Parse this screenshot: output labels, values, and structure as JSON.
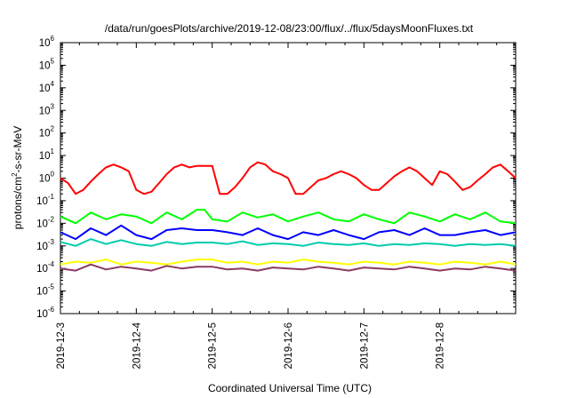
{
  "chart_data": {
    "type": "line",
    "title": "/data/run/goesPlots/archive/2019-12-08/23:00/flux/../flux/5daysMoonFluxes.txt",
    "xlabel": "Coordinated Universal Time (UTC)",
    "ylabel": {
      "base": "protons/cm",
      "sup": "2",
      "rest": "-s-sr-MeV"
    },
    "yscale": "log",
    "ylim": [
      1e-06,
      1000000.0
    ],
    "xlim": [
      3.0,
      9.0
    ],
    "x_unit_note": "x values are day-of-month in December 2019 (fractional)",
    "y_ticks": [
      {
        "value": 1e-06,
        "base": "10",
        "exp": "-6"
      },
      {
        "value": 1e-05,
        "base": "10",
        "exp": "-5"
      },
      {
        "value": 0.0001,
        "base": "10",
        "exp": "-4"
      },
      {
        "value": 0.001,
        "base": "10",
        "exp": "-3"
      },
      {
        "value": 0.01,
        "base": "10",
        "exp": "-2"
      },
      {
        "value": 0.1,
        "base": "10",
        "exp": "-1"
      },
      {
        "value": 1.0,
        "base": "10",
        "exp": "0"
      },
      {
        "value": 10.0,
        "base": "10",
        "exp": "1"
      },
      {
        "value": 100.0,
        "base": "10",
        "exp": "2"
      },
      {
        "value": 1000.0,
        "base": "10",
        "exp": "3"
      },
      {
        "value": 10000.0,
        "base": "10",
        "exp": "4"
      },
      {
        "value": 100000.0,
        "base": "10",
        "exp": "5"
      },
      {
        "value": 1000000.0,
        "base": "10",
        "exp": "6"
      }
    ],
    "x_ticks": [
      {
        "value": 3,
        "label": "2019-12-3"
      },
      {
        "value": 4,
        "label": "2019-12-4"
      },
      {
        "value": 5,
        "label": "2019-12-5"
      },
      {
        "value": 6,
        "label": "2019-12-6"
      },
      {
        "value": 7,
        "label": "2019-12-7"
      },
      {
        "value": 8,
        "label": "2019-12-8"
      }
    ],
    "grid": false,
    "legend": "none",
    "series": [
      {
        "color": "#ff0000",
        "x": [
          3.0,
          3.1,
          3.2,
          3.3,
          3.4,
          3.5,
          3.6,
          3.7,
          3.8,
          3.9,
          4.0,
          4.1,
          4.2,
          4.3,
          4.4,
          4.5,
          4.6,
          4.7,
          4.8,
          4.9,
          5.0,
          5.1,
          5.2,
          5.3,
          5.4,
          5.5,
          5.6,
          5.7,
          5.8,
          5.9,
          6.0,
          6.1,
          6.2,
          6.3,
          6.4,
          6.5,
          6.6,
          6.7,
          6.8,
          6.9,
          7.0,
          7.1,
          7.2,
          7.3,
          7.4,
          7.5,
          7.6,
          7.7,
          7.8,
          7.9,
          8.0,
          8.1,
          8.2,
          8.3,
          8.4,
          8.5,
          8.6,
          8.7,
          8.8,
          8.9,
          9.0
        ],
        "y": [
          1.0,
          0.6,
          0.2,
          0.3,
          0.7,
          1.5,
          3.0,
          4.0,
          3.0,
          2.0,
          0.3,
          0.2,
          0.25,
          0.6,
          1.5,
          3.0,
          4.0,
          3.0,
          3.5,
          3.5,
          3.5,
          0.2,
          0.2,
          0.4,
          1.0,
          3.0,
          5.0,
          4.0,
          2.0,
          1.5,
          1.0,
          0.2,
          0.2,
          0.4,
          0.8,
          1.0,
          1.5,
          2.0,
          1.5,
          1.0,
          0.5,
          0.3,
          0.3,
          0.6,
          1.2,
          2.0,
          3.0,
          2.0,
          1.0,
          0.5,
          2.0,
          1.5,
          0.7,
          0.3,
          0.4,
          0.8,
          1.5,
          3.0,
          4.0,
          2.0,
          1.0
        ]
      },
      {
        "color": "#00ff00",
        "x": [
          3.0,
          3.2,
          3.4,
          3.6,
          3.8,
          4.0,
          4.2,
          4.4,
          4.6,
          4.8,
          4.9,
          5.0,
          5.2,
          5.4,
          5.6,
          5.8,
          6.0,
          6.2,
          6.4,
          6.6,
          6.8,
          7.0,
          7.2,
          7.4,
          7.6,
          7.8,
          8.0,
          8.2,
          8.4,
          8.6,
          8.8,
          9.0
        ],
        "y": [
          0.02,
          0.01,
          0.03,
          0.015,
          0.025,
          0.02,
          0.01,
          0.03,
          0.015,
          0.04,
          0.04,
          0.015,
          0.012,
          0.03,
          0.018,
          0.025,
          0.012,
          0.02,
          0.03,
          0.015,
          0.012,
          0.025,
          0.015,
          0.01,
          0.03,
          0.02,
          0.012,
          0.025,
          0.015,
          0.03,
          0.012,
          0.01
        ]
      },
      {
        "color": "#0000ff",
        "x": [
          3.0,
          3.2,
          3.4,
          3.6,
          3.8,
          4.0,
          4.2,
          4.4,
          4.6,
          4.8,
          5.0,
          5.2,
          5.4,
          5.6,
          5.8,
          6.0,
          6.2,
          6.4,
          6.6,
          6.8,
          7.0,
          7.2,
          7.4,
          7.6,
          7.8,
          8.0,
          8.2,
          8.4,
          8.6,
          8.8,
          9.0
        ],
        "y": [
          0.004,
          0.002,
          0.006,
          0.003,
          0.008,
          0.003,
          0.002,
          0.005,
          0.006,
          0.005,
          0.005,
          0.004,
          0.003,
          0.006,
          0.003,
          0.002,
          0.004,
          0.003,
          0.005,
          0.003,
          0.002,
          0.004,
          0.005,
          0.003,
          0.006,
          0.003,
          0.003,
          0.004,
          0.005,
          0.003,
          0.004
        ]
      },
      {
        "color": "#00ccaa",
        "x": [
          3.0,
          3.2,
          3.4,
          3.6,
          3.8,
          4.0,
          4.2,
          4.4,
          4.6,
          4.8,
          5.0,
          5.2,
          5.4,
          5.6,
          5.8,
          6.0,
          6.2,
          6.4,
          6.6,
          6.8,
          7.0,
          7.2,
          7.4,
          7.6,
          7.8,
          8.0,
          8.2,
          8.4,
          8.6,
          8.8,
          9.0
        ],
        "y": [
          0.0015,
          0.001,
          0.002,
          0.0012,
          0.0018,
          0.0012,
          0.001,
          0.0015,
          0.0012,
          0.0014,
          0.0014,
          0.0012,
          0.0016,
          0.0011,
          0.0013,
          0.0012,
          0.001,
          0.0014,
          0.0012,
          0.0011,
          0.0013,
          0.001,
          0.0012,
          0.0011,
          0.0013,
          0.0012,
          0.001,
          0.0012,
          0.0011,
          0.0012,
          0.001
        ]
      },
      {
        "color": "#ffff00",
        "x": [
          3.0,
          3.2,
          3.4,
          3.6,
          3.8,
          4.0,
          4.2,
          4.4,
          4.6,
          4.8,
          5.0,
          5.2,
          5.4,
          5.6,
          5.8,
          6.0,
          6.2,
          6.4,
          6.6,
          6.8,
          7.0,
          7.2,
          7.4,
          7.6,
          7.8,
          8.0,
          8.2,
          8.4,
          8.6,
          8.8,
          9.0
        ],
        "y": [
          0.00015,
          0.0002,
          0.00018,
          0.00025,
          0.00015,
          0.0002,
          0.00018,
          0.00015,
          0.0002,
          0.00025,
          0.00025,
          0.00018,
          0.0002,
          0.00015,
          0.0002,
          0.00018,
          0.00025,
          0.0002,
          0.00018,
          0.00015,
          0.0002,
          0.00018,
          0.00015,
          0.0002,
          0.00018,
          0.00015,
          0.0002,
          0.00018,
          0.00015,
          0.0002,
          0.00015
        ]
      },
      {
        "color": "#8b3a62",
        "x": [
          3.0,
          3.2,
          3.4,
          3.6,
          3.8,
          4.0,
          4.2,
          4.4,
          4.6,
          4.8,
          5.0,
          5.2,
          5.4,
          5.6,
          5.8,
          6.0,
          6.2,
          6.4,
          6.6,
          6.8,
          7.0,
          7.2,
          7.4,
          7.6,
          7.8,
          8.0,
          8.2,
          8.4,
          8.6,
          8.8,
          9.0
        ],
        "y": [
          0.0001,
          8e-05,
          0.00015,
          9e-05,
          0.00012,
          0.0001,
          8e-05,
          0.00013,
          0.0001,
          0.00012,
          0.00012,
          9e-05,
          0.0001,
          8e-05,
          0.00011,
          0.0001,
          9e-05,
          0.00012,
          0.0001,
          8e-05,
          0.00011,
          0.0001,
          9e-05,
          0.00012,
          0.0001,
          8e-05,
          0.0001,
          9e-05,
          0.00012,
          0.0001,
          8e-05
        ]
      }
    ]
  }
}
